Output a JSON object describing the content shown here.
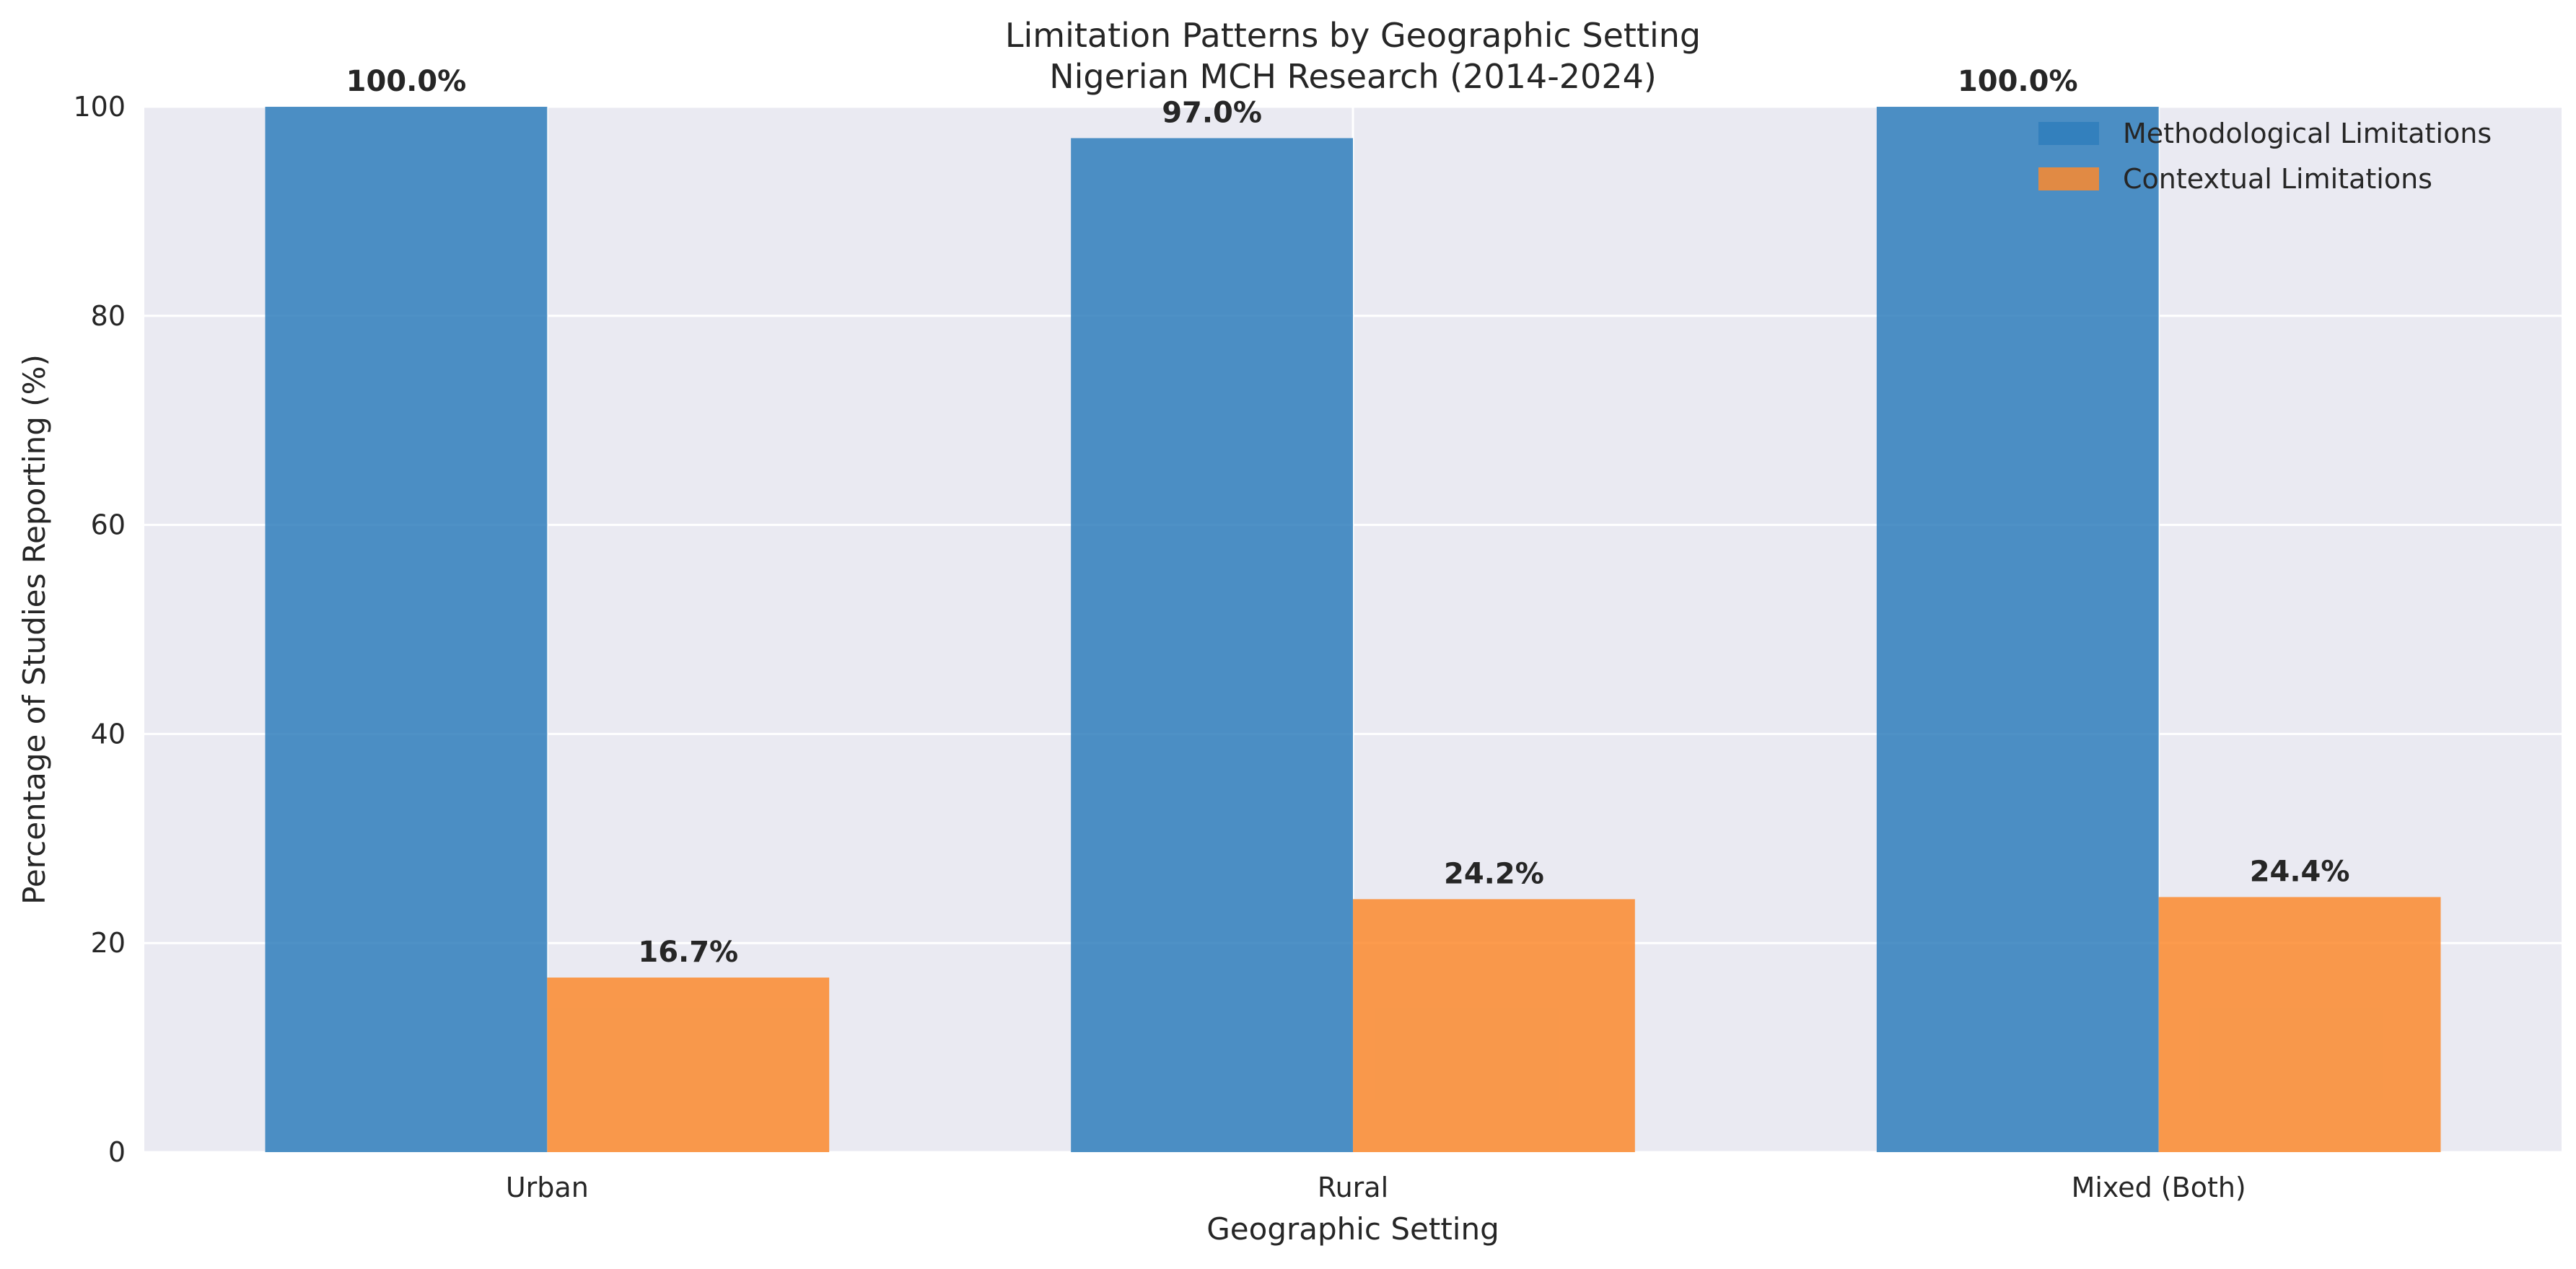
{
  "chart_data": {
    "type": "bar",
    "title": "Limitation Patterns by Geographic Setting",
    "subtitle": "Nigerian MCH Research (2014-2024)",
    "xlabel": "Geographic Setting",
    "ylabel": "Percentage of Studies Reporting (%)",
    "categories": [
      "Urban",
      "Rural",
      "Mixed (Both)"
    ],
    "ylim": [
      0,
      100
    ],
    "yticks": [
      0,
      20,
      40,
      60,
      80,
      100
    ],
    "grid": true,
    "legend_position": "top-right",
    "series": [
      {
        "name": "Methodological Limitations",
        "color": "#2f7ebc",
        "values": [
          100.0,
          97.0,
          100.0
        ],
        "labels": [
          "100.0%",
          "97.0%",
          "100.0%"
        ]
      },
      {
        "name": "Contextual Limitations",
        "color": "#fb8a2e",
        "values": [
          16.7,
          24.2,
          24.4
        ],
        "labels": [
          "16.7%",
          "24.2%",
          "24.4%"
        ]
      }
    ],
    "colors": {
      "plot_background": "#eaeaf2",
      "grid": "#ffffff",
      "text": "#262626"
    }
  }
}
